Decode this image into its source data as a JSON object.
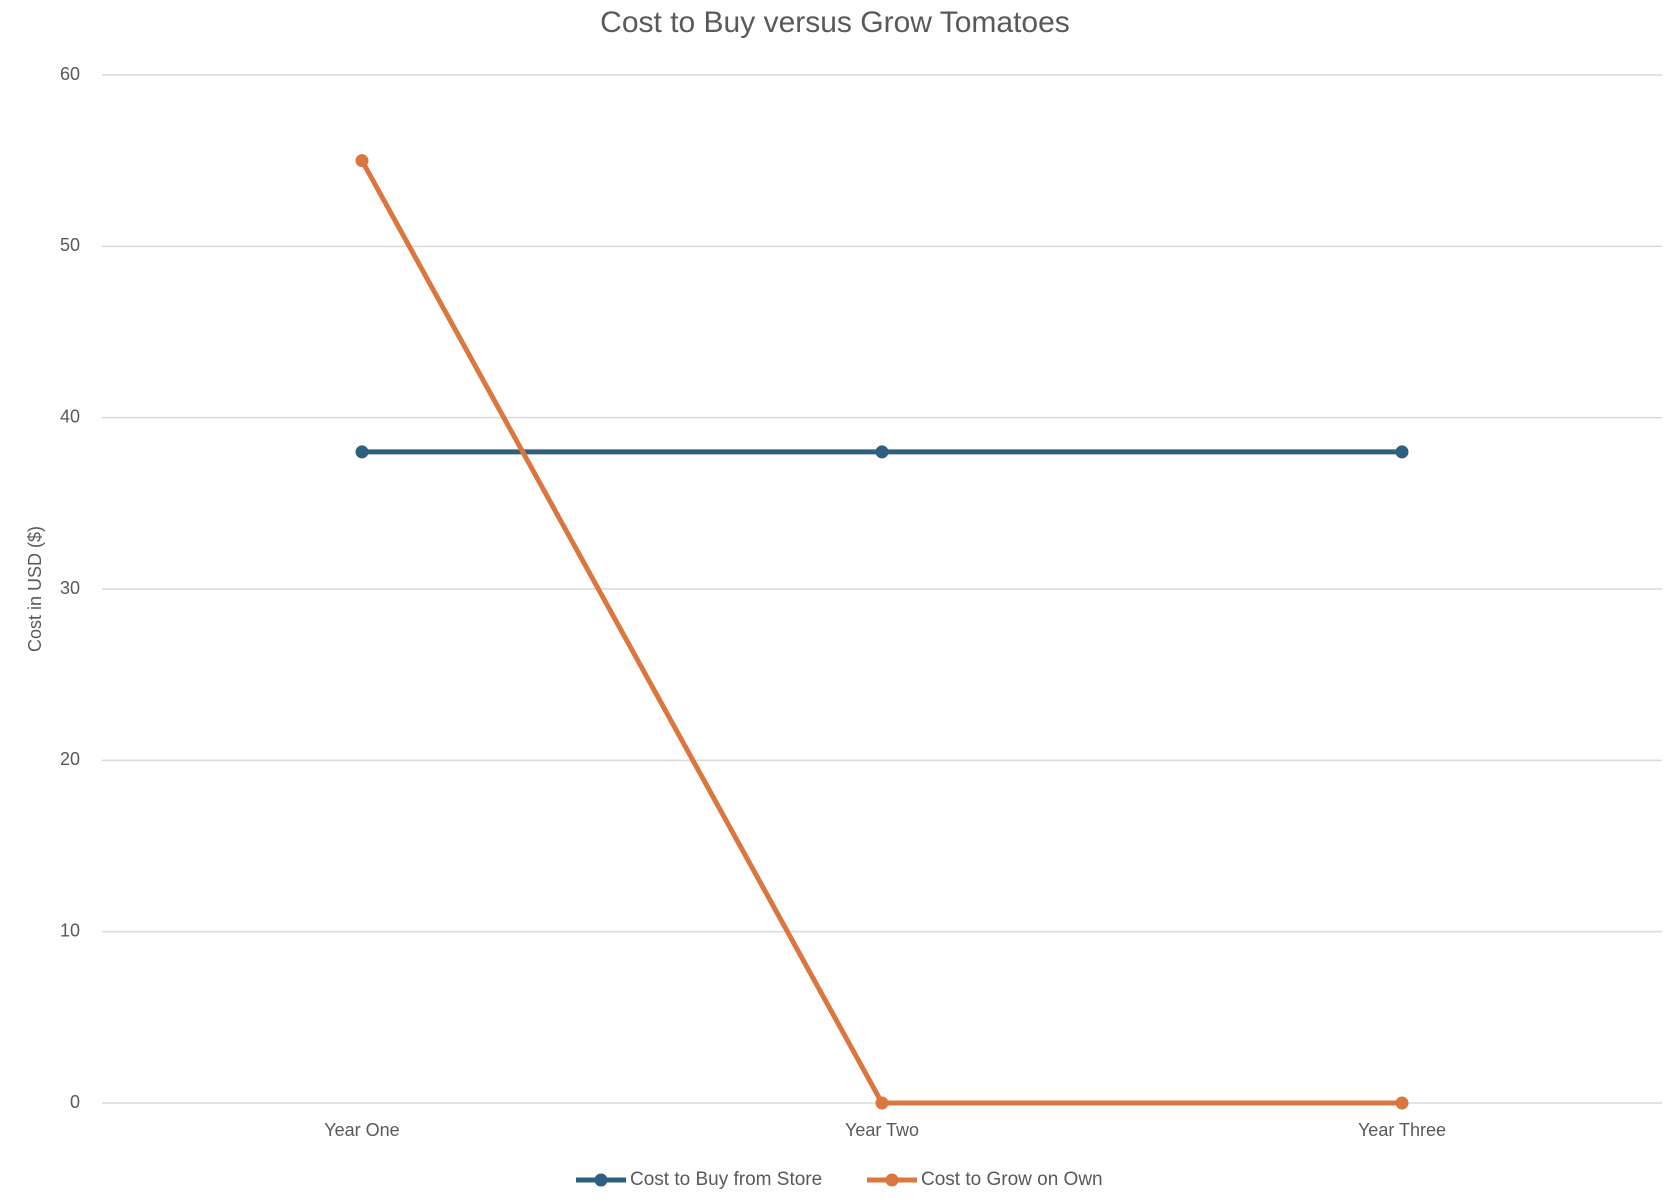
{
  "chart_data": {
    "type": "line",
    "title": "Cost to Buy versus Grow Tomatoes",
    "y_label": "Cost in USD ($)",
    "categories": [
      "Year One",
      "Year Two",
      "Year Three"
    ],
    "series": [
      {
        "name": "Cost to Buy from Store",
        "color": "#2e5f7f",
        "values": [
          38,
          38,
          38
        ]
      },
      {
        "name": "Cost to Grow on Own",
        "color": "#d9773f",
        "values": [
          55,
          0,
          0
        ]
      }
    ],
    "ylim": [
      0,
      60
    ],
    "yticks": [
      0,
      10,
      20,
      30,
      40,
      50,
      60
    ],
    "grid": true,
    "legend": "bottom"
  }
}
